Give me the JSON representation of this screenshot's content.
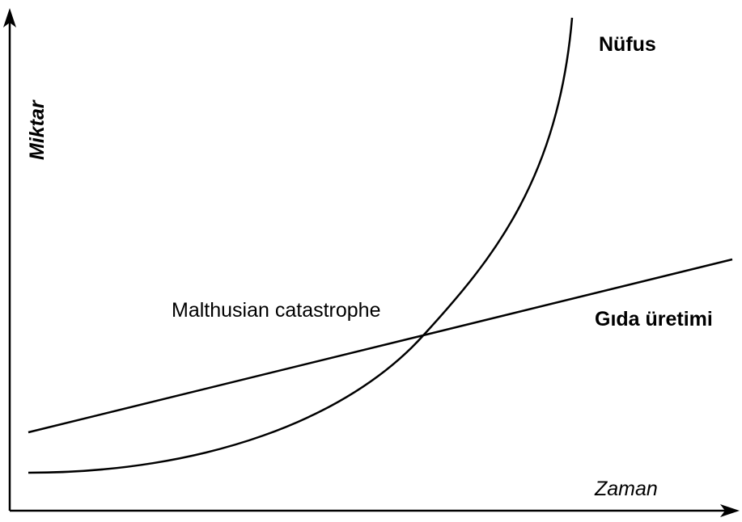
{
  "labels": {
    "y_axis": "Miktar",
    "x_axis": "Zaman",
    "population": "Nüfus",
    "food": "Gıda üretimi",
    "intersection": "Malthusian catastrophe"
  }
}
